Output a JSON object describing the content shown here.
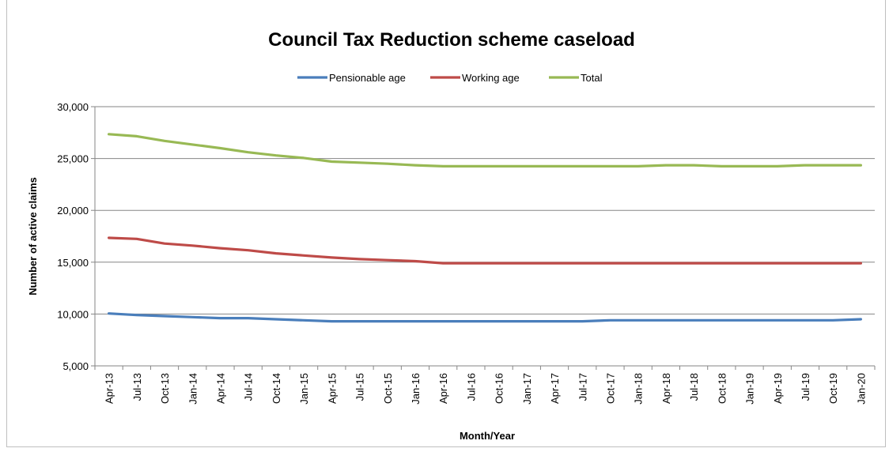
{
  "chart_data": {
    "type": "line",
    "title": "Council Tax Reduction scheme caseload",
    "xlabel": "Month/Year",
    "ylabel": "Number of active claims",
    "ylim": [
      5000,
      30000
    ],
    "yticks": [
      5000,
      10000,
      15000,
      20000,
      25000,
      30000
    ],
    "ytick_labels": [
      "5,000",
      "10,000",
      "15,000",
      "20,000",
      "25,000",
      "30,000"
    ],
    "grid": "horizontal",
    "legend_position": "top",
    "x": [
      "Apr-13",
      "Jul-13",
      "Oct-13",
      "Jan-14",
      "Apr-14",
      "Jul-14",
      "Oct-14",
      "Jan-15",
      "Apr-15",
      "Jul-15",
      "Oct-15",
      "Jan-16",
      "Apr-16",
      "Jul-16",
      "Oct-16",
      "Jan-17",
      "Apr-17",
      "Jul-17",
      "Oct-17",
      "Jan-18",
      "Apr-18",
      "Jul-18",
      "Oct-18",
      "Jan-19",
      "Apr-19",
      "Jul-19",
      "Oct-19",
      "Jan-20"
    ],
    "series": [
      {
        "name": "Pensionable age",
        "color": "#4a7ebb",
        "values": [
          10050,
          9900,
          9800,
          9700,
          9600,
          9600,
          9500,
          9400,
          9300,
          9300,
          9300,
          9300,
          9300,
          9300,
          9300,
          9300,
          9300,
          9300,
          9400,
          9400,
          9400,
          9400,
          9400,
          9400,
          9400,
          9400,
          9400,
          9500
        ]
      },
      {
        "name": "Working age",
        "color": "#be4b48",
        "values": [
          17350,
          17250,
          16800,
          16600,
          16350,
          16150,
          15850,
          15650,
          15450,
          15300,
          15200,
          15100,
          14900,
          14900,
          14900,
          14900,
          14900,
          14900,
          14900,
          14900,
          14900,
          14900,
          14900,
          14900,
          14900,
          14900,
          14900,
          14900
        ]
      },
      {
        "name": "Total",
        "color": "#98b954",
        "values": [
          27350,
          27150,
          26700,
          26350,
          26000,
          25600,
          25300,
          25050,
          24700,
          24600,
          24500,
          24350,
          24250,
          24250,
          24250,
          24250,
          24250,
          24250,
          24250,
          24250,
          24350,
          24350,
          24250,
          24250,
          24250,
          24350,
          24350,
          24350
        ]
      }
    ]
  }
}
